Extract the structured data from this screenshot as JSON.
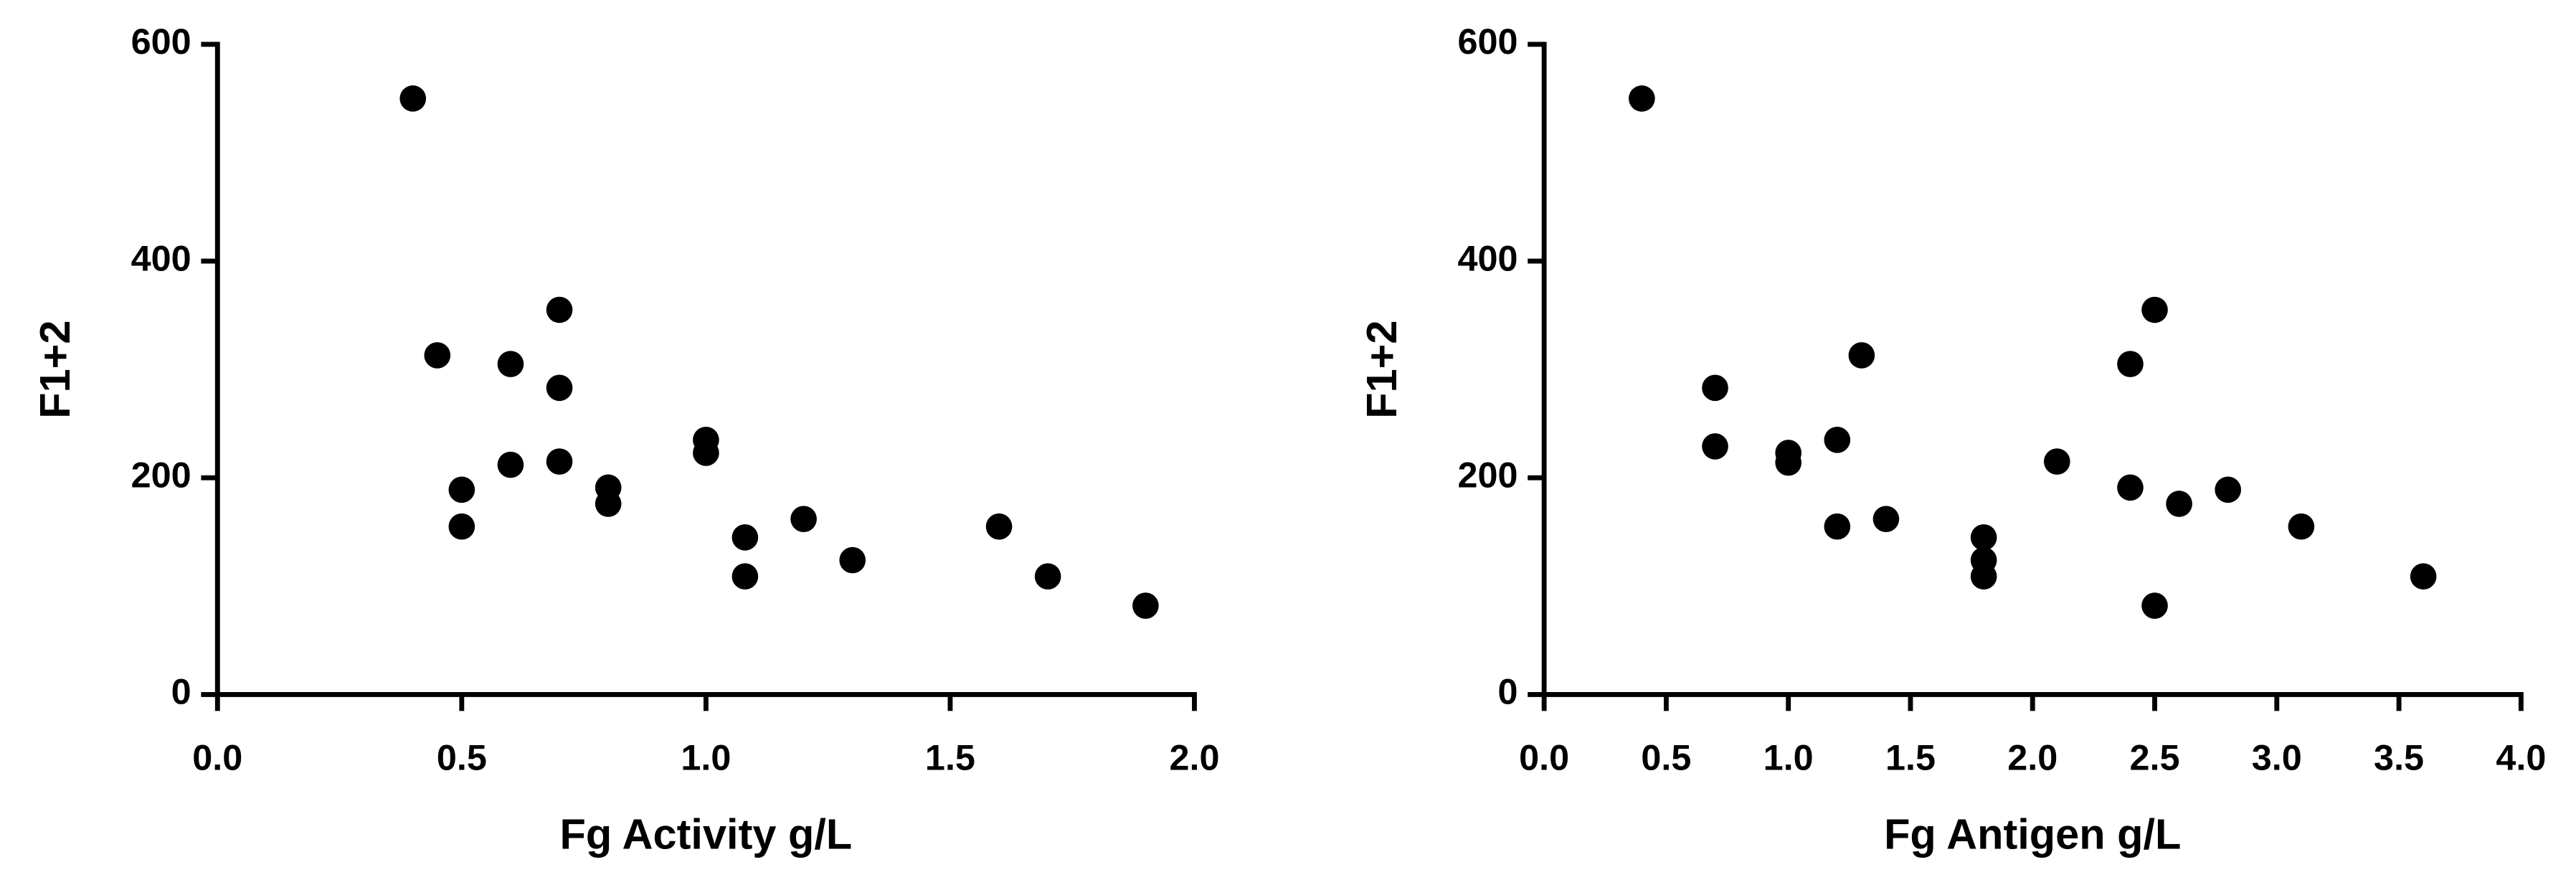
{
  "chart_data": [
    {
      "type": "scatter",
      "xlabel": "Fg Activity g/L",
      "ylabel": "F1+2",
      "color": "#000000",
      "xlim": [
        0,
        2
      ],
      "xticks": [
        {
          "value": 0,
          "label": "0.0"
        },
        0.5,
        {
          "value": 1,
          "label": "1.0"
        },
        1.5,
        {
          "value": 2,
          "label": "2.0"
        }
      ],
      "ylim": [
        0,
        600
      ],
      "yticks": [
        0,
        200,
        400,
        600
      ],
      "x": [
        0.4,
        0.45,
        0.5,
        0.5,
        0.6,
        0.6,
        0.7,
        0.7,
        0.7,
        0.8,
        0.8,
        1.0,
        1.0,
        1.08,
        1.08,
        1.2,
        1.3,
        1.6,
        1.7,
        1.9
      ],
      "values": [
        550,
        313,
        189,
        155,
        305,
        212,
        355,
        283,
        215,
        191,
        176,
        235,
        223,
        145,
        109,
        162,
        124,
        155,
        109,
        82
      ]
    },
    {
      "type": "scatter",
      "xlabel": "Fg Antigen g/L",
      "ylabel": "F1+2",
      "color": "#000000",
      "xlim": [
        0,
        4
      ],
      "xticks": [
        {
          "value": 0,
          "label": "0.0"
        },
        0.5,
        {
          "value": 1,
          "label": "1.0"
        },
        1.5,
        {
          "value": 2,
          "label": "2.0"
        },
        2.5,
        {
          "value": 3,
          "label": "3.0"
        },
        3.5,
        {
          "value": 4,
          "label": "4.0"
        }
      ],
      "ylim": [
        0,
        600
      ],
      "yticks": [
        0,
        200,
        400,
        600
      ],
      "x": [
        0.4,
        0.7,
        0.7,
        1.0,
        1.0,
        1.2,
        1.2,
        1.3,
        1.4,
        1.8,
        1.8,
        1.8,
        2.1,
        2.4,
        2.4,
        2.5,
        2.5,
        2.6,
        2.8,
        3.1,
        3.6
      ],
      "values": [
        550,
        283,
        229,
        223,
        214,
        235,
        155,
        313,
        162,
        145,
        124,
        109,
        215,
        305,
        191,
        355,
        82,
        176,
        189,
        155,
        109
      ]
    }
  ]
}
